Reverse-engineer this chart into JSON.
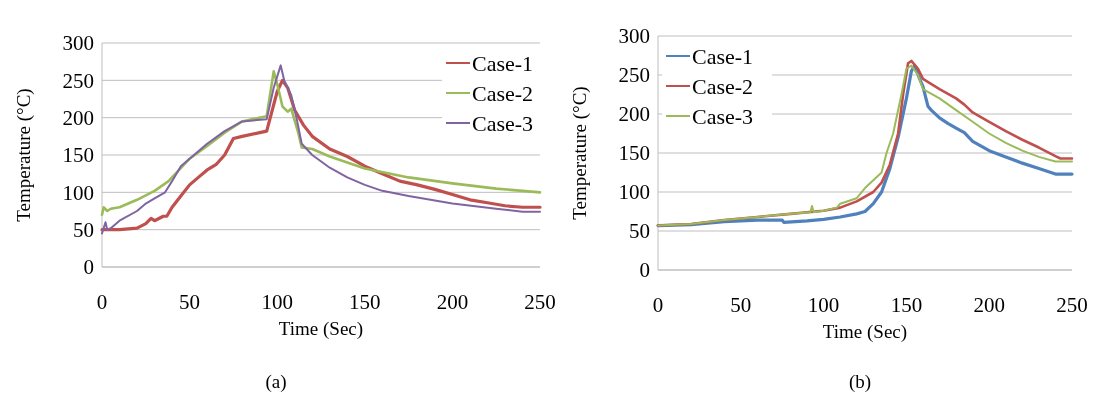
{
  "chart_data": [
    {
      "type": "line",
      "xlabel": "Time (Sec)",
      "ylabel": "Temperature (°C)",
      "xlim": [
        0,
        250
      ],
      "xticks": [
        0,
        50,
        100,
        150,
        200,
        250
      ],
      "ylim": [
        0,
        300
      ],
      "yticks": [
        0,
        50,
        100,
        150,
        200,
        250,
        300
      ],
      "grid": "y",
      "legend": "top right",
      "annotations": [
        "(a)"
      ],
      "series": [
        {
          "name": "Case-1",
          "color": "#c0504d",
          "x": [
            0,
            10,
            20,
            25,
            28,
            30,
            35,
            37,
            40,
            45,
            50,
            55,
            60,
            65,
            70,
            75,
            80,
            90,
            94,
            100,
            103,
            106,
            110,
            115,
            120,
            130,
            140,
            150,
            160,
            170,
            180,
            190,
            200,
            210,
            220,
            230,
            240,
            250
          ],
          "values": [
            50,
            50,
            52,
            58,
            65,
            62,
            68,
            68,
            80,
            95,
            110,
            120,
            130,
            137,
            150,
            172,
            175,
            180,
            182,
            235,
            250,
            240,
            210,
            190,
            175,
            158,
            148,
            135,
            125,
            115,
            110,
            104,
            97,
            90,
            86,
            82,
            80,
            80
          ]
        },
        {
          "name": "Case-2",
          "color": "#9bbb59",
          "x": [
            0,
            1,
            3,
            5,
            10,
            20,
            30,
            38,
            42,
            50,
            60,
            70,
            80,
            94,
            98,
            100,
            103,
            106,
            108,
            112,
            114,
            120,
            130,
            140,
            150,
            175,
            200,
            225,
            250
          ],
          "values": [
            70,
            80,
            75,
            78,
            80,
            90,
            102,
            115,
            125,
            145,
            162,
            180,
            195,
            202,
            262,
            245,
            215,
            208,
            212,
            180,
            160,
            158,
            148,
            140,
            132,
            120,
            112,
            105,
            100
          ]
        },
        {
          "name": "Case-3",
          "color": "#8064a2",
          "x": [
            0,
            2,
            3,
            5,
            10,
            20,
            25,
            30,
            36,
            40,
            45,
            50,
            55,
            60,
            70,
            80,
            94,
            98,
            102,
            104,
            108,
            111,
            114,
            120,
            130,
            140,
            150,
            160,
            175,
            200,
            225,
            240,
            250
          ],
          "values": [
            45,
            60,
            50,
            52,
            62,
            75,
            85,
            92,
            100,
            115,
            135,
            145,
            155,
            165,
            182,
            195,
            198,
            240,
            270,
            250,
            230,
            200,
            165,
            150,
            133,
            120,
            110,
            102,
            95,
            85,
            78,
            74,
            74
          ]
        }
      ]
    },
    {
      "type": "line",
      "xlabel": "Time (Sec)",
      "ylabel": "Temperature (°C)",
      "xlim": [
        0,
        250
      ],
      "xticks": [
        0,
        50,
        100,
        150,
        200,
        250
      ],
      "ylim": [
        0,
        300
      ],
      "yticks": [
        0,
        50,
        100,
        150,
        200,
        250,
        300
      ],
      "grid": "y",
      "legend": "top left",
      "annotations": [
        "(b)"
      ],
      "series": [
        {
          "name": "Case-1",
          "color": "#4f81bd",
          "x": [
            0,
            20,
            40,
            60,
            75,
            76,
            90,
            100,
            110,
            120,
            125,
            130,
            135,
            140,
            145,
            150,
            153,
            155,
            158,
            160,
            163,
            165,
            170,
            175,
            180,
            185,
            190,
            200,
            210,
            220,
            230,
            240,
            250
          ],
          "values": [
            57,
            58,
            62,
            64,
            64,
            61,
            63,
            65,
            68,
            72,
            75,
            85,
            100,
            130,
            170,
            220,
            255,
            262,
            245,
            235,
            210,
            205,
            195,
            188,
            182,
            176,
            165,
            153,
            145,
            137,
            130,
            123,
            123
          ]
        },
        {
          "name": "Case-2",
          "color": "#c0504d",
          "x": [
            0,
            20,
            40,
            60,
            80,
            100,
            110,
            120,
            130,
            135,
            140,
            145,
            148,
            151,
            153,
            157,
            160,
            170,
            180,
            185,
            190,
            200,
            210,
            220,
            230,
            240,
            243,
            250
          ],
          "values": [
            57,
            59,
            64,
            68,
            72,
            76,
            80,
            88,
            100,
            112,
            135,
            175,
            225,
            265,
            268,
            258,
            245,
            232,
            220,
            212,
            202,
            190,
            178,
            167,
            157,
            146,
            143,
            143
          ]
        },
        {
          "name": "Case-3",
          "color": "#9bbb59",
          "x": [
            0,
            20,
            40,
            60,
            80,
            92,
            93,
            94,
            100,
            108,
            110,
            120,
            125,
            130,
            135,
            138,
            142,
            147,
            150,
            153,
            157,
            160,
            170,
            180,
            190,
            200,
            210,
            220,
            230,
            240,
            250
          ],
          "values": [
            57,
            59,
            64,
            68,
            72,
            74,
            82,
            74,
            76,
            80,
            85,
            92,
            105,
            115,
            125,
            150,
            175,
            225,
            258,
            262,
            250,
            232,
            220,
            205,
            190,
            175,
            163,
            153,
            145,
            139,
            139
          ]
        }
      ]
    }
  ]
}
